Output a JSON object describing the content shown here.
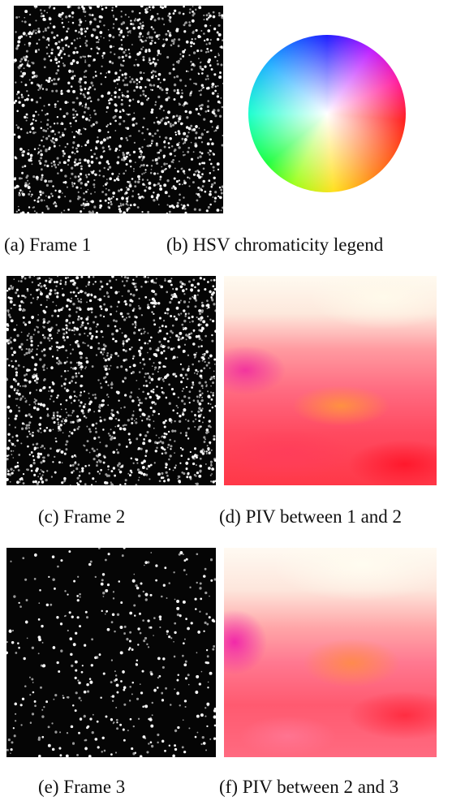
{
  "figure": {
    "panels": [
      {
        "caption": "(a) Frame 1"
      },
      {
        "caption": "(b) HSV chromaticity legend"
      },
      {
        "caption": "(c) Frame 2"
      },
      {
        "caption": "(d) PIV between 1 and 2"
      },
      {
        "caption": "(e) Frame 3"
      },
      {
        "caption": "(f) PIV between 2 and 3"
      }
    ]
  }
}
